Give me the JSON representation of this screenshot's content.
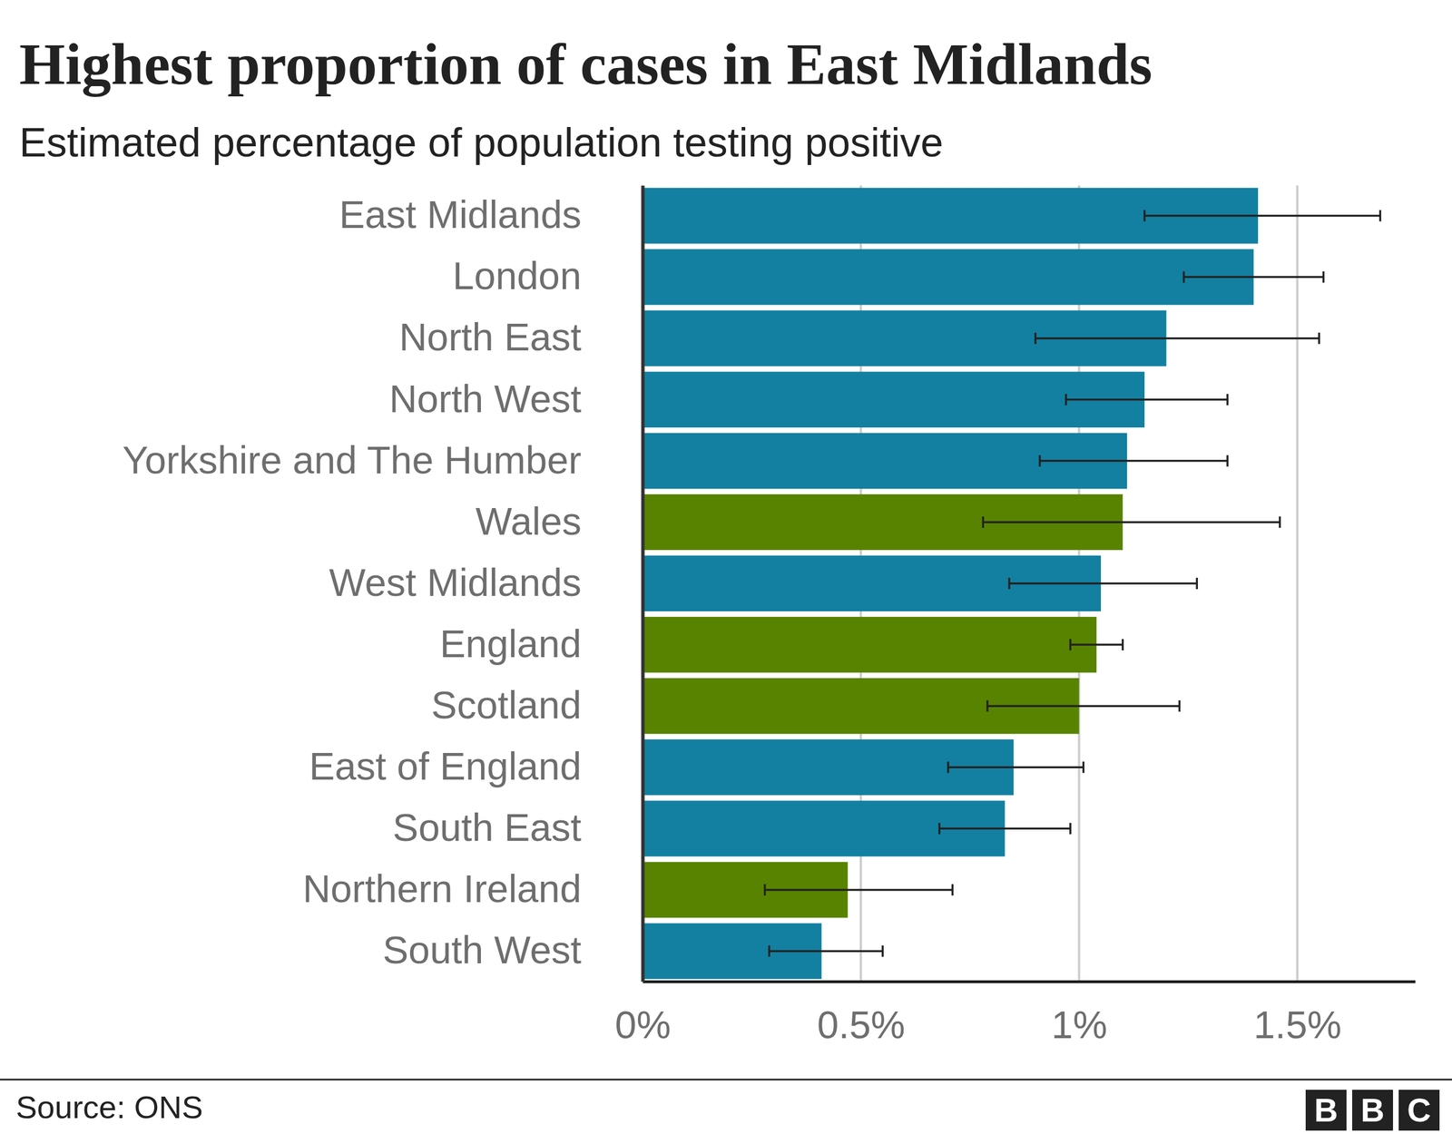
{
  "chart_data": {
    "type": "bar",
    "orientation": "horizontal",
    "title": "Highest proportion of cases in East Midlands",
    "subtitle": "Estimated percentage of population testing positive",
    "source": "Source: ONS",
    "logo": [
      "B",
      "B",
      "C"
    ],
    "categories": [
      "East Midlands",
      "London",
      "North East",
      "North West",
      "Yorkshire and The Humber",
      "Wales",
      "West Midlands",
      "England",
      "Scotland",
      "East of England",
      "South East",
      "Northern Ireland",
      "South West"
    ],
    "values": [
      1.41,
      1.4,
      1.2,
      1.15,
      1.11,
      1.1,
      1.05,
      1.04,
      1.0,
      0.85,
      0.83,
      0.47,
      0.41
    ],
    "error_low": [
      1.15,
      1.24,
      0.9,
      0.97,
      0.91,
      0.78,
      0.84,
      0.98,
      0.79,
      0.7,
      0.68,
      0.28,
      0.29
    ],
    "error_high": [
      1.69,
      1.56,
      1.55,
      1.34,
      1.34,
      1.46,
      1.27,
      1.1,
      1.23,
      1.01,
      0.98,
      0.71,
      0.55
    ],
    "colors": [
      "#1380a1",
      "#1380a1",
      "#1380a1",
      "#1380a1",
      "#1380a1",
      "#588300",
      "#1380a1",
      "#588300",
      "#588300",
      "#1380a1",
      "#1380a1",
      "#588300",
      "#1380a1"
    ],
    "xlim": [
      0,
      1.77
    ],
    "xticks": [
      {
        "value": 0,
        "label": "0%"
      },
      {
        "value": 0.5,
        "label": "0.5%"
      },
      {
        "value": 1,
        "label": "1%"
      },
      {
        "value": 1.5,
        "label": "1.5%"
      }
    ],
    "grid": true
  }
}
